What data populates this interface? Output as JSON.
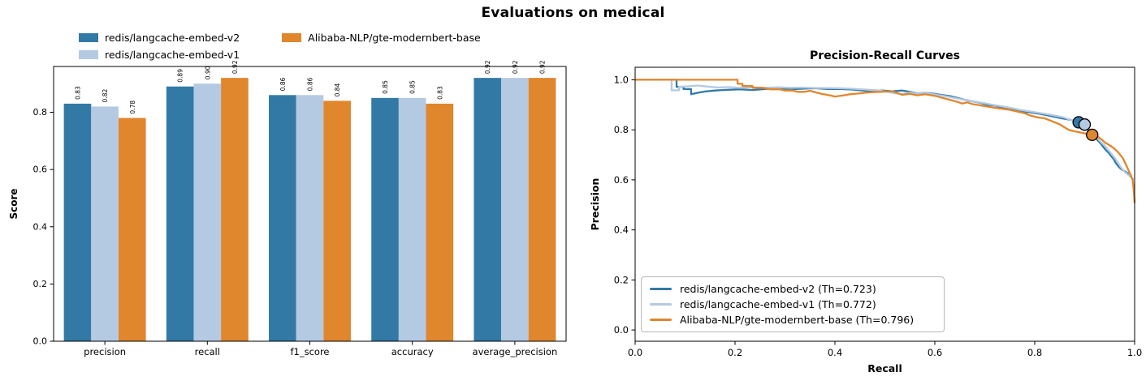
{
  "figure": {
    "title": "Evaluations on medical"
  },
  "colors": {
    "v2": "#3379a6",
    "v1": "#b4c9e2",
    "gte": "#e0862d",
    "spine": "#000000"
  },
  "chart_data": [
    {
      "type": "bar",
      "title": "",
      "xlabel": "",
      "ylabel": "Score",
      "categories": [
        "precision",
        "recall",
        "f1_score",
        "accuracy",
        "average_precision"
      ],
      "yticks": [
        "0.0",
        "0.2",
        "0.4",
        "0.6",
        "0.8"
      ],
      "ylim": [
        0,
        0.96
      ],
      "grid": false,
      "legend_position": "above-left, two columns, no frame",
      "series": [
        {
          "name": "redis/langcache-embed-v2",
          "color": "#3379a6",
          "values": [
            0.83,
            0.89,
            0.86,
            0.85,
            0.92
          ],
          "bar_labels": [
            "0.83",
            "0.89",
            "0.86",
            "0.85",
            "0.92"
          ]
        },
        {
          "name": "redis/langcache-embed-v1",
          "color": "#b4c9e2",
          "values": [
            0.82,
            0.9,
            0.86,
            0.85,
            0.92
          ],
          "bar_labels": [
            "0.82",
            "0.90",
            "0.86",
            "0.85",
            "0.92"
          ]
        },
        {
          "name": "Alibaba-NLP/gte-modernbert-base",
          "color": "#e0862d",
          "values": [
            0.78,
            0.92,
            0.84,
            0.83,
            0.92
          ],
          "bar_labels": [
            "0.78",
            "0.92",
            "0.84",
            "0.83",
            "0.92"
          ]
        }
      ]
    },
    {
      "type": "line",
      "title": "Precision-Recall Curves",
      "xlabel": "Recall",
      "ylabel": "Precision",
      "xticks": [
        "0.0",
        "0.2",
        "0.4",
        "0.6",
        "0.8",
        "1.0"
      ],
      "yticks": [
        "0.0",
        "0.2",
        "0.4",
        "0.6",
        "0.8",
        "1.0"
      ],
      "xlim": [
        0,
        1
      ],
      "ylim": [
        -0.045,
        1.05
      ],
      "grid": false,
      "legend_position": "lower left, framed",
      "series": [
        {
          "name": "redis/langcache-embed-v2",
          "legend_label": "redis/langcache-embed-v2 (Th=0.723)",
          "threshold": 0.723,
          "color": "#3379a6",
          "marker": [
            0.888,
            0.83
          ],
          "points": [
            [
              0,
              1
            ],
            [
              0.083,
              1
            ],
            [
              0.083,
              0.972
            ],
            [
              0.097,
              0.972
            ],
            [
              0.097,
              0.963
            ],
            [
              0.112,
              0.963
            ],
            [
              0.112,
              0.942
            ],
            [
              0.125,
              0.948
            ],
            [
              0.14,
              0.953
            ],
            [
              0.16,
              0.957
            ],
            [
              0.185,
              0.96
            ],
            [
              0.21,
              0.962
            ],
            [
              0.235,
              0.959
            ],
            [
              0.26,
              0.963
            ],
            [
              0.285,
              0.965
            ],
            [
              0.31,
              0.962
            ],
            [
              0.335,
              0.964
            ],
            [
              0.36,
              0.966
            ],
            [
              0.385,
              0.963
            ],
            [
              0.41,
              0.963
            ],
            [
              0.435,
              0.961
            ],
            [
              0.455,
              0.957
            ],
            [
              0.475,
              0.954
            ],
            [
              0.495,
              0.957
            ],
            [
              0.515,
              0.954
            ],
            [
              0.535,
              0.957
            ],
            [
              0.55,
              0.952
            ],
            [
              0.565,
              0.946
            ],
            [
              0.58,
              0.948
            ],
            [
              0.6,
              0.944
            ],
            [
              0.615,
              0.939
            ],
            [
              0.63,
              0.935
            ],
            [
              0.645,
              0.928
            ],
            [
              0.66,
              0.92
            ],
            [
              0.675,
              0.914
            ],
            [
              0.69,
              0.908
            ],
            [
              0.705,
              0.9
            ],
            [
              0.72,
              0.897
            ],
            [
              0.735,
              0.89
            ],
            [
              0.75,
              0.884
            ],
            [
              0.762,
              0.878
            ],
            [
              0.775,
              0.873
            ],
            [
              0.79,
              0.87
            ],
            [
              0.8,
              0.867
            ],
            [
              0.815,
              0.862
            ],
            [
              0.828,
              0.857
            ],
            [
              0.84,
              0.852
            ],
            [
              0.852,
              0.847
            ],
            [
              0.862,
              0.843
            ],
            [
              0.872,
              0.84
            ],
            [
              0.88,
              0.835
            ],
            [
              0.89,
              0.83
            ],
            [
              0.9,
              0.818
            ],
            [
              0.907,
              0.8
            ],
            [
              0.913,
              0.787
            ],
            [
              0.918,
              0.775
            ],
            [
              0.925,
              0.76
            ],
            [
              0.932,
              0.745
            ],
            [
              0.937,
              0.732
            ],
            [
              0.942,
              0.72
            ],
            [
              0.948,
              0.708
            ],
            [
              0.953,
              0.695
            ],
            [
              0.958,
              0.683
            ],
            [
              0.962,
              0.668
            ],
            [
              0.967,
              0.655
            ],
            [
              0.972,
              0.645
            ],
            [
              0.977,
              0.638
            ],
            [
              0.982,
              0.632
            ],
            [
              0.987,
              0.625
            ]
          ]
        },
        {
          "name": "redis/langcache-embed-v1",
          "legend_label": "redis/langcache-embed-v1 (Th=0.772)",
          "threshold": 0.772,
          "color": "#b4c9e2",
          "marker": [
            0.9,
            0.821
          ],
          "points": [
            [
              0,
              1
            ],
            [
              0.073,
              1
            ],
            [
              0.073,
              0.958
            ],
            [
              0.088,
              0.958
            ],
            [
              0.088,
              0.972
            ],
            [
              0.105,
              0.974
            ],
            [
              0.125,
              0.977
            ],
            [
              0.145,
              0.973
            ],
            [
              0.165,
              0.969
            ],
            [
              0.185,
              0.971
            ],
            [
              0.21,
              0.968
            ],
            [
              0.235,
              0.97
            ],
            [
              0.26,
              0.968
            ],
            [
              0.285,
              0.97
            ],
            [
              0.31,
              0.968
            ],
            [
              0.335,
              0.969
            ],
            [
              0.36,
              0.967
            ],
            [
              0.385,
              0.967
            ],
            [
              0.41,
              0.966
            ],
            [
              0.435,
              0.964
            ],
            [
              0.46,
              0.961
            ],
            [
              0.485,
              0.958
            ],
            [
              0.505,
              0.952
            ],
            [
              0.52,
              0.946
            ],
            [
              0.535,
              0.943
            ],
            [
              0.55,
              0.949
            ],
            [
              0.565,
              0.945
            ],
            [
              0.58,
              0.947
            ],
            [
              0.595,
              0.943
            ],
            [
              0.61,
              0.938
            ],
            [
              0.625,
              0.933
            ],
            [
              0.64,
              0.927
            ],
            [
              0.655,
              0.921
            ],
            [
              0.67,
              0.916
            ],
            [
              0.685,
              0.911
            ],
            [
              0.7,
              0.906
            ],
            [
              0.715,
              0.9
            ],
            [
              0.73,
              0.895
            ],
            [
              0.745,
              0.89
            ],
            [
              0.758,
              0.885
            ],
            [
              0.77,
              0.88
            ],
            [
              0.783,
              0.876
            ],
            [
              0.795,
              0.872
            ],
            [
              0.808,
              0.868
            ],
            [
              0.82,
              0.864
            ],
            [
              0.832,
              0.86
            ],
            [
              0.845,
              0.855
            ],
            [
              0.857,
              0.85
            ],
            [
              0.867,
              0.843
            ],
            [
              0.877,
              0.837
            ],
            [
              0.887,
              0.833
            ],
            [
              0.895,
              0.83
            ],
            [
              0.9,
              0.82
            ],
            [
              0.908,
              0.805
            ],
            [
              0.915,
              0.79
            ],
            [
              0.92,
              0.778
            ],
            [
              0.927,
              0.763
            ],
            [
              0.933,
              0.75
            ],
            [
              0.94,
              0.737
            ],
            [
              0.945,
              0.724
            ],
            [
              0.95,
              0.712
            ],
            [
              0.955,
              0.7
            ],
            [
              0.96,
              0.688
            ],
            [
              0.965,
              0.673
            ],
            [
              0.97,
              0.658
            ],
            [
              0.975,
              0.644
            ],
            [
              0.98,
              0.632
            ],
            [
              0.986,
              0.622
            ],
            [
              0.992,
              0.612
            ],
            [
              0.997,
              0.603
            ]
          ]
        },
        {
          "name": "Alibaba-NLP/gte-modernbert-base",
          "legend_label": "Alibaba-NLP/gte-modernbert-base (Th=0.796)",
          "threshold": 0.796,
          "color": "#e0862d",
          "marker": [
            0.915,
            0.78
          ],
          "points": [
            [
              0,
              1
            ],
            [
              0.205,
              1
            ],
            [
              0.205,
              0.984
            ],
            [
              0.215,
              0.984
            ],
            [
              0.215,
              0.975
            ],
            [
              0.235,
              0.975
            ],
            [
              0.235,
              0.968
            ],
            [
              0.255,
              0.968
            ],
            [
              0.27,
              0.962
            ],
            [
              0.29,
              0.962
            ],
            [
              0.3,
              0.957
            ],
            [
              0.315,
              0.957
            ],
            [
              0.325,
              0.952
            ],
            [
              0.34,
              0.952
            ],
            [
              0.35,
              0.956
            ],
            [
              0.365,
              0.948
            ],
            [
              0.375,
              0.943
            ],
            [
              0.39,
              0.938
            ],
            [
              0.4,
              0.933
            ],
            [
              0.415,
              0.937
            ],
            [
              0.43,
              0.942
            ],
            [
              0.45,
              0.946
            ],
            [
              0.47,
              0.95
            ],
            [
              0.49,
              0.952
            ],
            [
              0.515,
              0.954
            ],
            [
              0.525,
              0.947
            ],
            [
              0.535,
              0.94
            ],
            [
              0.55,
              0.944
            ],
            [
              0.565,
              0.938
            ],
            [
              0.58,
              0.942
            ],
            [
              0.6,
              0.936
            ],
            [
              0.615,
              0.928
            ],
            [
              0.63,
              0.92
            ],
            [
              0.645,
              0.912
            ],
            [
              0.655,
              0.905
            ],
            [
              0.665,
              0.91
            ],
            [
              0.675,
              0.903
            ],
            [
              0.69,
              0.898
            ],
            [
              0.705,
              0.893
            ],
            [
              0.72,
              0.888
            ],
            [
              0.735,
              0.884
            ],
            [
              0.75,
              0.88
            ],
            [
              0.765,
              0.873
            ],
            [
              0.78,
              0.866
            ],
            [
              0.79,
              0.858
            ],
            [
              0.805,
              0.85
            ],
            [
              0.82,
              0.846
            ],
            [
              0.83,
              0.838
            ],
            [
              0.84,
              0.83
            ],
            [
              0.85,
              0.822
            ],
            [
              0.858,
              0.812
            ],
            [
              0.868,
              0.8
            ],
            [
              0.88,
              0.794
            ],
            [
              0.895,
              0.788
            ],
            [
              0.905,
              0.783
            ],
            [
              0.915,
              0.78
            ],
            [
              0.922,
              0.776
            ],
            [
              0.928,
              0.77
            ],
            [
              0.935,
              0.76
            ],
            [
              0.94,
              0.75
            ],
            [
              0.947,
              0.742
            ],
            [
              0.953,
              0.734
            ],
            [
              0.958,
              0.727
            ],
            [
              0.963,
              0.718
            ],
            [
              0.968,
              0.708
            ],
            [
              0.972,
              0.698
            ],
            [
              0.976,
              0.688
            ],
            [
              0.98,
              0.672
            ],
            [
              0.984,
              0.655
            ],
            [
              0.988,
              0.637
            ],
            [
              0.992,
              0.62
            ],
            [
              0.996,
              0.6
            ],
            [
              0.998,
              0.565
            ],
            [
              1,
              0.51
            ]
          ]
        }
      ]
    }
  ]
}
